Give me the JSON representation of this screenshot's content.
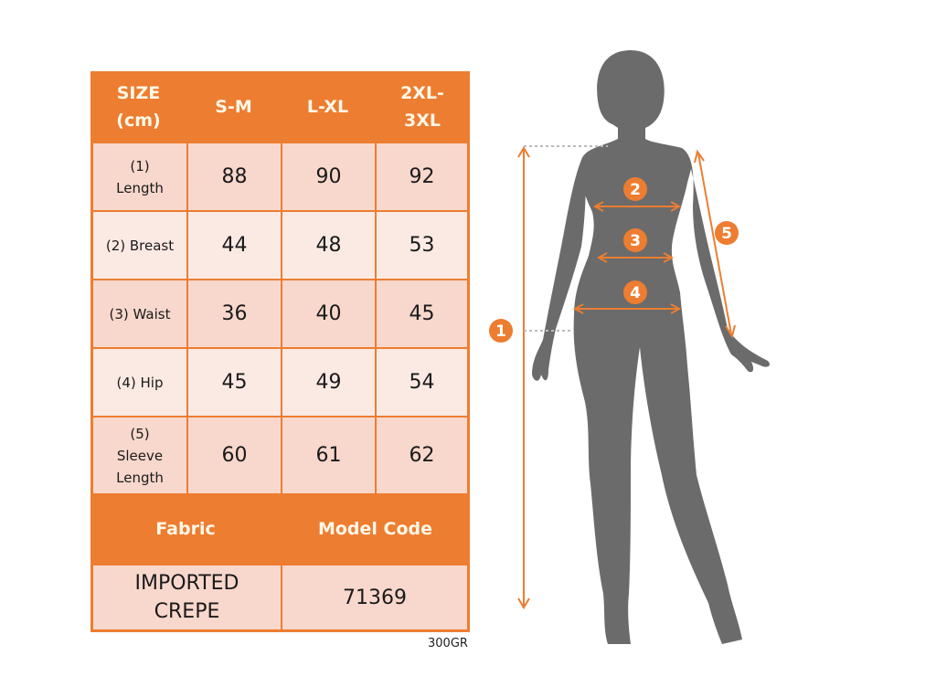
{
  "table": {
    "headers": [
      "SIZE (cm)",
      "S-M",
      "L-XL",
      "2XL-3XL"
    ],
    "header_lines": [
      [
        "SIZE",
        "(cm)"
      ],
      [
        "S-M"
      ],
      [
        "L-XL"
      ],
      [
        "2XL-",
        "3XL"
      ]
    ],
    "rows": [
      {
        "label_lines": [
          "(1)",
          "Length"
        ],
        "values": [
          "88",
          "90",
          "92"
        ]
      },
      {
        "label_lines": [
          "(2) Breast"
        ],
        "values": [
          "44",
          "48",
          "53"
        ]
      },
      {
        "label_lines": [
          "(3) Waist"
        ],
        "values": [
          "36",
          "40",
          "45"
        ]
      },
      {
        "label_lines": [
          "(4) Hip"
        ],
        "values": [
          "45",
          "49",
          "54"
        ]
      },
      {
        "label_lines": [
          "(5)",
          "Sleeve",
          "Length"
        ],
        "values": [
          "60",
          "61",
          "62"
        ]
      }
    ],
    "footer_headers": [
      "Fabric",
      "Model Code"
    ],
    "footer_values": [
      [
        "IMPORTED",
        "CREPE"
      ],
      [
        "71369"
      ]
    ]
  },
  "note": "300GR",
  "figure": {
    "markers": [
      "1",
      "2",
      "3",
      "4",
      "5"
    ]
  },
  "colors": {
    "accent": "#ed7d31",
    "row_dark": "#f8d8cc",
    "row_light": "#fbeae4",
    "silhouette": "#6b6b6b"
  }
}
